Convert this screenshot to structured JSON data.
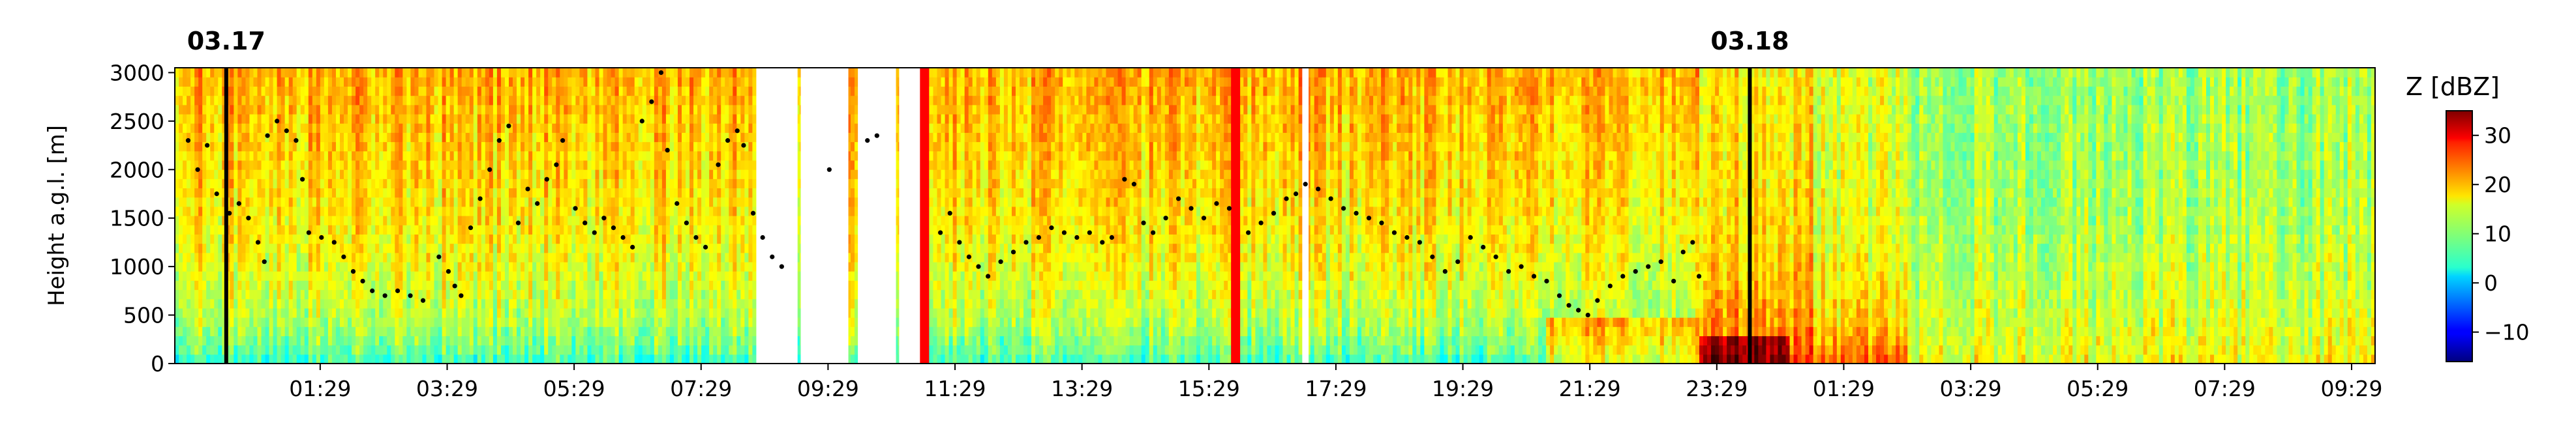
{
  "chart_data": {
    "type": "heatmap",
    "title": "",
    "date_labels": [
      {
        "label": "03.17",
        "position_hours": 0.0
      },
      {
        "label": "03.18",
        "position_hours": 24.0
      }
    ],
    "x_range_hours": [
      -0.81,
      33.85
    ],
    "xticks": [
      {
        "hours": 1.48,
        "label": "01:29"
      },
      {
        "hours": 3.48,
        "label": "03:29"
      },
      {
        "hours": 5.48,
        "label": "05:29"
      },
      {
        "hours": 7.48,
        "label": "07:29"
      },
      {
        "hours": 9.48,
        "label": "09:29"
      },
      {
        "hours": 11.48,
        "label": "11:29"
      },
      {
        "hours": 13.48,
        "label": "13:29"
      },
      {
        "hours": 15.48,
        "label": "15:29"
      },
      {
        "hours": 17.48,
        "label": "17:29"
      },
      {
        "hours": 19.48,
        "label": "19:29"
      },
      {
        "hours": 21.48,
        "label": "21:29"
      },
      {
        "hours": 23.48,
        "label": "23:29"
      },
      {
        "hours": 25.48,
        "label": "01:29"
      },
      {
        "hours": 27.48,
        "label": "03:29"
      },
      {
        "hours": 29.48,
        "label": "05:29"
      },
      {
        "hours": 31.48,
        "label": "07:29"
      },
      {
        "hours": 33.48,
        "label": "09:29"
      }
    ],
    "ylabel": "Height a.g.l. [m]",
    "ylim": [
      0,
      3050
    ],
    "yticks": [
      0,
      500,
      1000,
      1500,
      2000,
      2500,
      3000
    ],
    "colorbar": {
      "title": "Z [dBZ]",
      "vmin": -16,
      "vmax": 35,
      "ticks": [
        -10,
        0,
        10,
        20,
        30
      ],
      "colormap": "jet"
    },
    "vertical_lines": [
      {
        "hours": 0.0,
        "color": "#000000"
      },
      {
        "hours": 11.0,
        "color": "#ff0000"
      },
      {
        "hours": 15.9,
        "color": "#ff0000"
      },
      {
        "hours": 24.0,
        "color": "#000000"
      }
    ],
    "missing_data_hours": [
      [
        8.35,
        9.0
      ],
      [
        9.05,
        9.8
      ],
      [
        9.95,
        10.55
      ],
      [
        10.6,
        10.95
      ],
      [
        16.95,
        17.05
      ]
    ],
    "cloud_base_points": [
      [
        -0.6,
        2300
      ],
      [
        -0.45,
        2000
      ],
      [
        -0.3,
        2250
      ],
      [
        -0.15,
        1750
      ],
      [
        0.05,
        1550
      ],
      [
        0.2,
        1650
      ],
      [
        0.35,
        1500
      ],
      [
        0.5,
        1250
      ],
      [
        0.6,
        1050
      ],
      [
        0.65,
        2350
      ],
      [
        0.8,
        2500
      ],
      [
        0.95,
        2400
      ],
      [
        1.1,
        2300
      ],
      [
        1.2,
        1900
      ],
      [
        1.3,
        1350
      ],
      [
        1.5,
        1300
      ],
      [
        1.7,
        1250
      ],
      [
        1.85,
        1100
      ],
      [
        2.0,
        950
      ],
      [
        2.15,
        850
      ],
      [
        2.3,
        750
      ],
      [
        2.5,
        700
      ],
      [
        2.7,
        750
      ],
      [
        2.9,
        700
      ],
      [
        3.1,
        650
      ],
      [
        3.35,
        1100
      ],
      [
        3.5,
        950
      ],
      [
        3.6,
        800
      ],
      [
        3.7,
        700
      ],
      [
        3.85,
        1400
      ],
      [
        4.0,
        1700
      ],
      [
        4.15,
        2000
      ],
      [
        4.3,
        2300
      ],
      [
        4.45,
        2450
      ],
      [
        4.6,
        1450
      ],
      [
        4.75,
        1800
      ],
      [
        4.9,
        1650
      ],
      [
        5.05,
        1900
      ],
      [
        5.2,
        2050
      ],
      [
        5.3,
        2300
      ],
      [
        5.5,
        1600
      ],
      [
        5.65,
        1450
      ],
      [
        5.8,
        1350
      ],
      [
        5.95,
        1500
      ],
      [
        6.1,
        1400
      ],
      [
        6.25,
        1300
      ],
      [
        6.4,
        1200
      ],
      [
        6.55,
        2500
      ],
      [
        6.7,
        2700
      ],
      [
        6.85,
        3000
      ],
      [
        6.95,
        2200
      ],
      [
        7.1,
        1650
      ],
      [
        7.25,
        1450
      ],
      [
        7.4,
        1300
      ],
      [
        7.55,
        1200
      ],
      [
        7.75,
        2050
      ],
      [
        7.9,
        2300
      ],
      [
        8.05,
        2400
      ],
      [
        8.15,
        2250
      ],
      [
        8.3,
        1550
      ],
      [
        8.45,
        1300
      ],
      [
        8.6,
        1100
      ],
      [
        8.75,
        1000
      ],
      [
        9.5,
        2000
      ],
      [
        10.1,
        2300
      ],
      [
        10.25,
        2350
      ],
      [
        11.25,
        1350
      ],
      [
        11.4,
        1550
      ],
      [
        11.55,
        1250
      ],
      [
        11.7,
        1100
      ],
      [
        11.85,
        1000
      ],
      [
        12.0,
        900
      ],
      [
        12.2,
        1050
      ],
      [
        12.4,
        1150
      ],
      [
        12.6,
        1250
      ],
      [
        12.8,
        1300
      ],
      [
        13.0,
        1400
      ],
      [
        13.2,
        1350
      ],
      [
        13.4,
        1300
      ],
      [
        13.6,
        1350
      ],
      [
        13.8,
        1250
      ],
      [
        13.95,
        1300
      ],
      [
        14.15,
        1900
      ],
      [
        14.3,
        1850
      ],
      [
        14.45,
        1450
      ],
      [
        14.6,
        1350
      ],
      [
        14.8,
        1500
      ],
      [
        15.0,
        1700
      ],
      [
        15.2,
        1600
      ],
      [
        15.4,
        1500
      ],
      [
        15.6,
        1650
      ],
      [
        15.8,
        1600
      ],
      [
        16.1,
        1350
      ],
      [
        16.3,
        1450
      ],
      [
        16.5,
        1550
      ],
      [
        16.7,
        1700
      ],
      [
        16.85,
        1750
      ],
      [
        17.0,
        1850
      ],
      [
        17.2,
        1800
      ],
      [
        17.4,
        1700
      ],
      [
        17.6,
        1600
      ],
      [
        17.8,
        1550
      ],
      [
        18.0,
        1500
      ],
      [
        18.2,
        1450
      ],
      [
        18.4,
        1350
      ],
      [
        18.6,
        1300
      ],
      [
        18.8,
        1250
      ],
      [
        19.0,
        1100
      ],
      [
        19.2,
        950
      ],
      [
        19.4,
        1050
      ],
      [
        19.6,
        1300
      ],
      [
        19.8,
        1200
      ],
      [
        20.0,
        1100
      ],
      [
        20.2,
        950
      ],
      [
        20.4,
        1000
      ],
      [
        20.6,
        900
      ],
      [
        20.8,
        850
      ],
      [
        21.0,
        700
      ],
      [
        21.15,
        600
      ],
      [
        21.3,
        550
      ],
      [
        21.45,
        500
      ],
      [
        21.6,
        650
      ],
      [
        21.8,
        800
      ],
      [
        22.0,
        900
      ],
      [
        22.2,
        950
      ],
      [
        22.4,
        1000
      ],
      [
        22.6,
        1050
      ],
      [
        22.8,
        850
      ],
      [
        22.95,
        1150
      ],
      [
        23.1,
        1250
      ],
      [
        23.2,
        900
      ]
    ]
  }
}
